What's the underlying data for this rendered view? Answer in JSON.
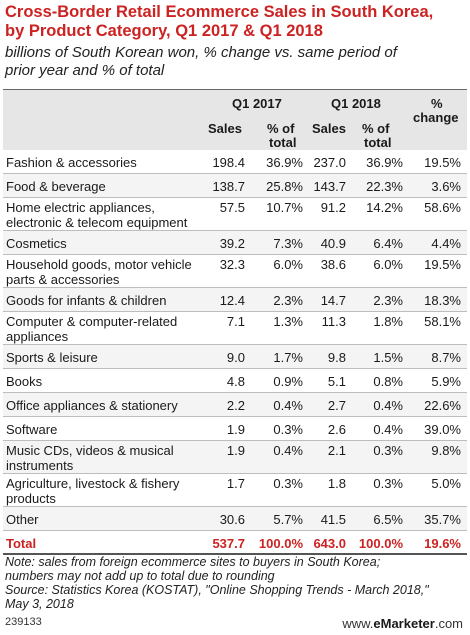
{
  "title_line1": "Cross-Border Retail Ecommerce Sales in South Korea,",
  "title_line2": "by Product Category, Q1 2017 & Q1 2018",
  "subtitle_line1": "billions of South Korean won, % change vs. same period of",
  "subtitle_line2": "prior year and % of total",
  "header": {
    "q1_2017": "Q1 2017",
    "q1_2018": "Q1 2018",
    "pct_change_1": "%",
    "pct_change_2": "change",
    "sales": "Sales",
    "pct_of": "% of",
    "total": "total"
  },
  "chart_data": {
    "type": "table",
    "columns": [
      "",
      "Q1 2017 Sales",
      "Q1 2017 % of total",
      "Q1 2018 Sales",
      "Q1 2018 % of total",
      "% change"
    ],
    "rows": [
      {
        "label": [
          "Fashion & accessories"
        ],
        "values": [
          "198.4",
          "36.9%",
          "237.0",
          "36.9%",
          "19.5%"
        ]
      },
      {
        "label": [
          "Food & beverage"
        ],
        "values": [
          "138.7",
          "25.8%",
          "143.7",
          "22.3%",
          "3.6%"
        ]
      },
      {
        "label": [
          "Home electric appliances,",
          "electronic & telecom equipment"
        ],
        "values": [
          "57.5",
          "10.7%",
          "91.2",
          "14.2%",
          "58.6%"
        ]
      },
      {
        "label": [
          "Cosmetics"
        ],
        "values": [
          "39.2",
          "7.3%",
          "40.9",
          "6.4%",
          "4.4%"
        ]
      },
      {
        "label": [
          "Household goods, motor vehicle",
          "parts & accessories"
        ],
        "values": [
          "32.3",
          "6.0%",
          "38.6",
          "6.0%",
          "19.5%"
        ]
      },
      {
        "label": [
          "Goods for infants & children"
        ],
        "values": [
          "12.4",
          "2.3%",
          "14.7",
          "2.3%",
          "18.3%"
        ]
      },
      {
        "label": [
          "Computer & computer-related",
          "appliances"
        ],
        "values": [
          "7.1",
          "1.3%",
          "11.3",
          "1.8%",
          "58.1%"
        ]
      },
      {
        "label": [
          "Sports & leisure"
        ],
        "values": [
          "9.0",
          "1.7%",
          "9.8",
          "1.5%",
          "8.7%"
        ]
      },
      {
        "label": [
          "Books"
        ],
        "values": [
          "4.8",
          "0.9%",
          "5.1",
          "0.8%",
          "5.9%"
        ]
      },
      {
        "label": [
          "Office appliances & stationery"
        ],
        "values": [
          "2.2",
          "0.4%",
          "2.7",
          "0.4%",
          "22.6%"
        ]
      },
      {
        "label": [
          "Software"
        ],
        "values": [
          "1.9",
          "0.3%",
          "2.6",
          "0.4%",
          "39.0%"
        ]
      },
      {
        "label": [
          "Music CDs, videos & musical",
          "instruments"
        ],
        "values": [
          "1.9",
          "0.4%",
          "2.1",
          "0.3%",
          "9.8%"
        ]
      },
      {
        "label": [
          "Agriculture, livestock & fishery",
          "products"
        ],
        "values": [
          "1.7",
          "0.3%",
          "1.8",
          "0.3%",
          "5.0%"
        ]
      },
      {
        "label": [
          "Other"
        ],
        "values": [
          "30.6",
          "5.7%",
          "41.5",
          "6.5%",
          "35.7%"
        ]
      }
    ],
    "total": {
      "label": [
        "Total"
      ],
      "values": [
        "537.7",
        "100.0%",
        "643.0",
        "100.0%",
        "19.6%"
      ]
    }
  },
  "note_line1": "Note: sales from foreign ecommerce sites to buyers in South Korea;",
  "note_line2": "numbers may not add up to total due to rounding",
  "source_line1": "Source: Statistics Korea (KOSTAT), \"Online Shopping Trends - March 2018,\"",
  "source_line2": "May 3, 2018",
  "chart_id": "239133",
  "brand_prefix": "www.",
  "brand_name": "eMarketer",
  "brand_suffix": ".com",
  "colors": {
    "title": "#cc2222",
    "header_bg": "#e6e6e6",
    "total": "#cc2222"
  }
}
